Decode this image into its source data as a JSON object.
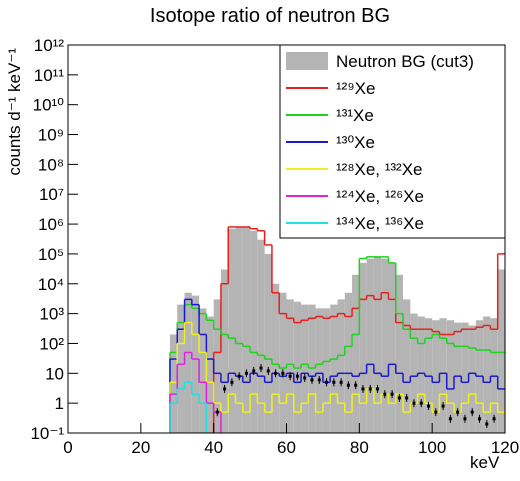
{
  "chart_data": {
    "type": "histogram",
    "title": "Isotope ratio of neutron BG",
    "xlabel": "keV",
    "ylabel": "counts d⁻¹ keV⁻¹",
    "bins": [
      0,
      2,
      4,
      6,
      8,
      10,
      12,
      14,
      16,
      18,
      20,
      22,
      24,
      26,
      28,
      30,
      32,
      34,
      36,
      38,
      40,
      42,
      44,
      46,
      48,
      50,
      52,
      54,
      56,
      58,
      60,
      62,
      64,
      66,
      68,
      70,
      72,
      74,
      76,
      78,
      80,
      82,
      84,
      86,
      88,
      90,
      92,
      94,
      96,
      98,
      100,
      102,
      104,
      106,
      108,
      110,
      112,
      114,
      116,
      118,
      120
    ],
    "xlim": [
      0,
      120
    ],
    "xticks": [
      0,
      20,
      40,
      60,
      80,
      100,
      120
    ],
    "ylim": [
      0.1,
      1000000000000.0
    ],
    "log_y": true,
    "yticks": [
      {
        "value": 0.1,
        "label": "10⁻¹"
      },
      1,
      10,
      {
        "value": 100,
        "label": "10²"
      },
      {
        "value": 1000,
        "label": "10³"
      },
      {
        "value": 10000,
        "label": "10⁴"
      },
      {
        "value": 100000,
        "label": "10⁵"
      },
      {
        "value": 1000000,
        "label": "10⁶"
      },
      {
        "value": 10000000,
        "label": "10⁷"
      },
      {
        "value": 100000000,
        "label": "10⁸"
      },
      {
        "value": 1000000000,
        "label": "10⁹"
      },
      {
        "value": 10000000000,
        "label": "10¹⁰"
      },
      {
        "value": 100000000000,
        "label": "10¹¹"
      },
      {
        "value": 1000000000000,
        "label": "10¹²"
      }
    ],
    "legend": "upper right",
    "series": [
      {
        "name": "Neutron BG (cut3)",
        "color": "#b4b4b4",
        "fill": true,
        "values": [
          null,
          null,
          null,
          null,
          null,
          null,
          null,
          null,
          null,
          null,
          null,
          null,
          null,
          null,
          200,
          2000,
          5000,
          4000,
          1500,
          800,
          3000,
          30000,
          700000,
          800000,
          800000,
          600000,
          300000,
          100000,
          10000,
          5000,
          3000,
          2500,
          2000,
          2000,
          1500,
          1500,
          2000,
          3000,
          5000,
          20000,
          50000,
          70000,
          80000,
          70000,
          50000,
          20000,
          3000,
          1000,
          800,
          700,
          600,
          700,
          600,
          500,
          500,
          400,
          600,
          800,
          700,
          30000
        ]
      },
      {
        "name": "¹²⁹Xe",
        "color": "#e8201c",
        "values": [
          null,
          null,
          null,
          null,
          null,
          null,
          null,
          null,
          null,
          null,
          null,
          null,
          null,
          null,
          null,
          null,
          null,
          null,
          null,
          null,
          50,
          10000,
          800000,
          800000,
          800000,
          700000,
          600000,
          200000,
          5000,
          1000,
          700,
          500,
          600,
          700,
          800,
          700,
          800,
          1000,
          800,
          1500,
          3000,
          4000,
          3000,
          5000,
          3000,
          500,
          400,
          300,
          300,
          300,
          250,
          200,
          200,
          250,
          300,
          300,
          350,
          400,
          300,
          100000
        ]
      },
      {
        "name": "¹³¹Xe",
        "color": "#22d022",
        "values": [
          null,
          null,
          null,
          null,
          null,
          null,
          null,
          null,
          null,
          null,
          null,
          null,
          null,
          null,
          50,
          500,
          2000,
          1500,
          1000,
          600,
          300,
          200,
          150,
          100,
          80,
          50,
          40,
          30,
          20,
          15,
          20,
          15,
          20,
          15,
          20,
          25,
          30,
          40,
          80,
          200,
          70000,
          80000,
          80000,
          80000,
          50000,
          1000,
          300,
          150,
          100,
          150,
          200,
          150,
          100,
          80,
          80,
          70,
          60,
          60,
          50,
          50
        ]
      },
      {
        "name": "¹³⁰Xe",
        "color": "#1a1acc",
        "values": [
          null,
          null,
          null,
          null,
          null,
          null,
          null,
          null,
          null,
          null,
          null,
          null,
          null,
          null,
          30,
          300,
          3000,
          2000,
          200,
          30,
          10,
          5,
          10,
          8,
          5,
          10,
          8,
          5,
          10,
          8,
          10,
          5,
          10,
          8,
          10,
          5,
          8,
          10,
          10,
          8,
          10,
          20,
          10,
          8,
          20,
          10,
          5,
          8,
          10,
          8,
          5,
          10,
          3,
          8,
          5,
          10,
          8,
          5,
          8,
          3
        ]
      },
      {
        "name": "¹²⁸Xe, ¹³²Xe",
        "color": "#f0f020",
        "values": [
          null,
          null,
          null,
          null,
          null,
          null,
          null,
          null,
          null,
          null,
          null,
          null,
          null,
          null,
          5,
          100,
          500,
          200,
          50,
          5,
          1,
          0.5,
          2,
          1,
          0.5,
          2,
          1,
          0.5,
          2,
          1,
          2,
          0.5,
          1,
          2,
          0.5,
          1,
          2,
          1,
          0.5,
          2,
          1,
          3,
          1,
          2,
          1,
          2,
          0.5,
          1,
          2,
          1,
          0.5,
          2,
          1,
          0.5,
          1,
          2,
          1,
          0.5,
          1,
          0.5
        ]
      },
      {
        "name": "¹²⁴Xe, ¹²⁶Xe",
        "color": "#e020e0",
        "values": [
          null,
          null,
          null,
          null,
          null,
          null,
          null,
          null,
          null,
          null,
          null,
          null,
          null,
          null,
          2,
          20,
          50,
          30,
          5,
          1,
          0.5,
          null,
          null,
          null,
          null,
          null,
          null,
          null,
          null,
          null,
          null,
          null,
          null,
          null,
          null,
          null,
          null,
          null,
          null,
          null,
          null,
          null,
          null,
          null,
          null,
          null,
          null,
          null,
          null,
          null,
          null,
          null,
          null,
          null,
          null,
          null,
          null,
          null,
          null,
          null
        ]
      },
      {
        "name": "¹³⁴Xe, ¹³⁶Xe",
        "color": "#20e0e0",
        "values": [
          null,
          null,
          null,
          null,
          null,
          null,
          null,
          null,
          null,
          null,
          null,
          null,
          null,
          null,
          1,
          3,
          5,
          2,
          1,
          null,
          null,
          null,
          null,
          null,
          null,
          null,
          null,
          null,
          null,
          null,
          null,
          null,
          null,
          null,
          null,
          null,
          null,
          null,
          null,
          null,
          null,
          null,
          null,
          null,
          null,
          null,
          null,
          null,
          null,
          null,
          null,
          null,
          null,
          null,
          null,
          null,
          null,
          null,
          null,
          null
        ]
      },
      {
        "color": "#000000",
        "markers": true,
        "values": [
          null,
          null,
          null,
          null,
          null,
          null,
          null,
          null,
          null,
          null,
          null,
          null,
          null,
          null,
          null,
          null,
          null,
          null,
          null,
          null,
          0.5,
          3,
          5,
          8,
          10,
          12,
          15,
          12,
          10,
          10,
          8,
          8,
          7,
          6,
          6,
          5,
          5,
          5,
          4,
          4,
          3,
          3,
          3,
          2,
          2,
          1.5,
          1.5,
          1,
          1,
          0.8,
          0.5,
          0.8,
          0.3,
          0.5,
          0.3,
          0.5,
          0.3,
          0.2,
          0.3,
          null
        ]
      }
    ]
  }
}
